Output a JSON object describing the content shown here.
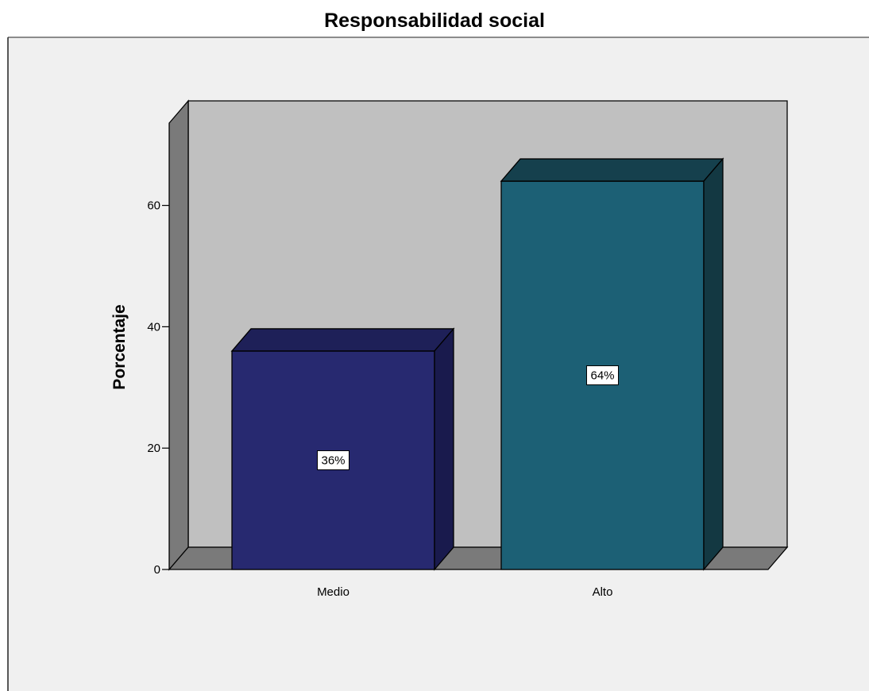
{
  "chart_data": {
    "type": "bar",
    "title": "Responsabilidad social",
    "xlabel": "",
    "ylabel": "Porcentaje",
    "categories": [
      "Medio",
      "Alto"
    ],
    "values": [
      36,
      64
    ],
    "data_labels": [
      "36%",
      "64%"
    ],
    "ylim": [
      0,
      75
    ],
    "yticks": [
      0,
      20,
      40,
      60
    ],
    "ytick_labels": [
      "0",
      "20",
      "40",
      "60"
    ],
    "grid": false,
    "legend": "none",
    "style": "3d",
    "colors": {
      "outer_background": "#f0f0f0",
      "plot_back_wall": "#c0c0c0",
      "plot_floor": "#7a7a7a",
      "plot_side_wall": "#7a7a7a",
      "bar_fronts": [
        "#272970",
        "#1c6075"
      ],
      "bar_tops": [
        "#1e2058",
        "#15404d"
      ],
      "bar_sides": [
        "#191a4d",
        "#133842"
      ]
    }
  }
}
